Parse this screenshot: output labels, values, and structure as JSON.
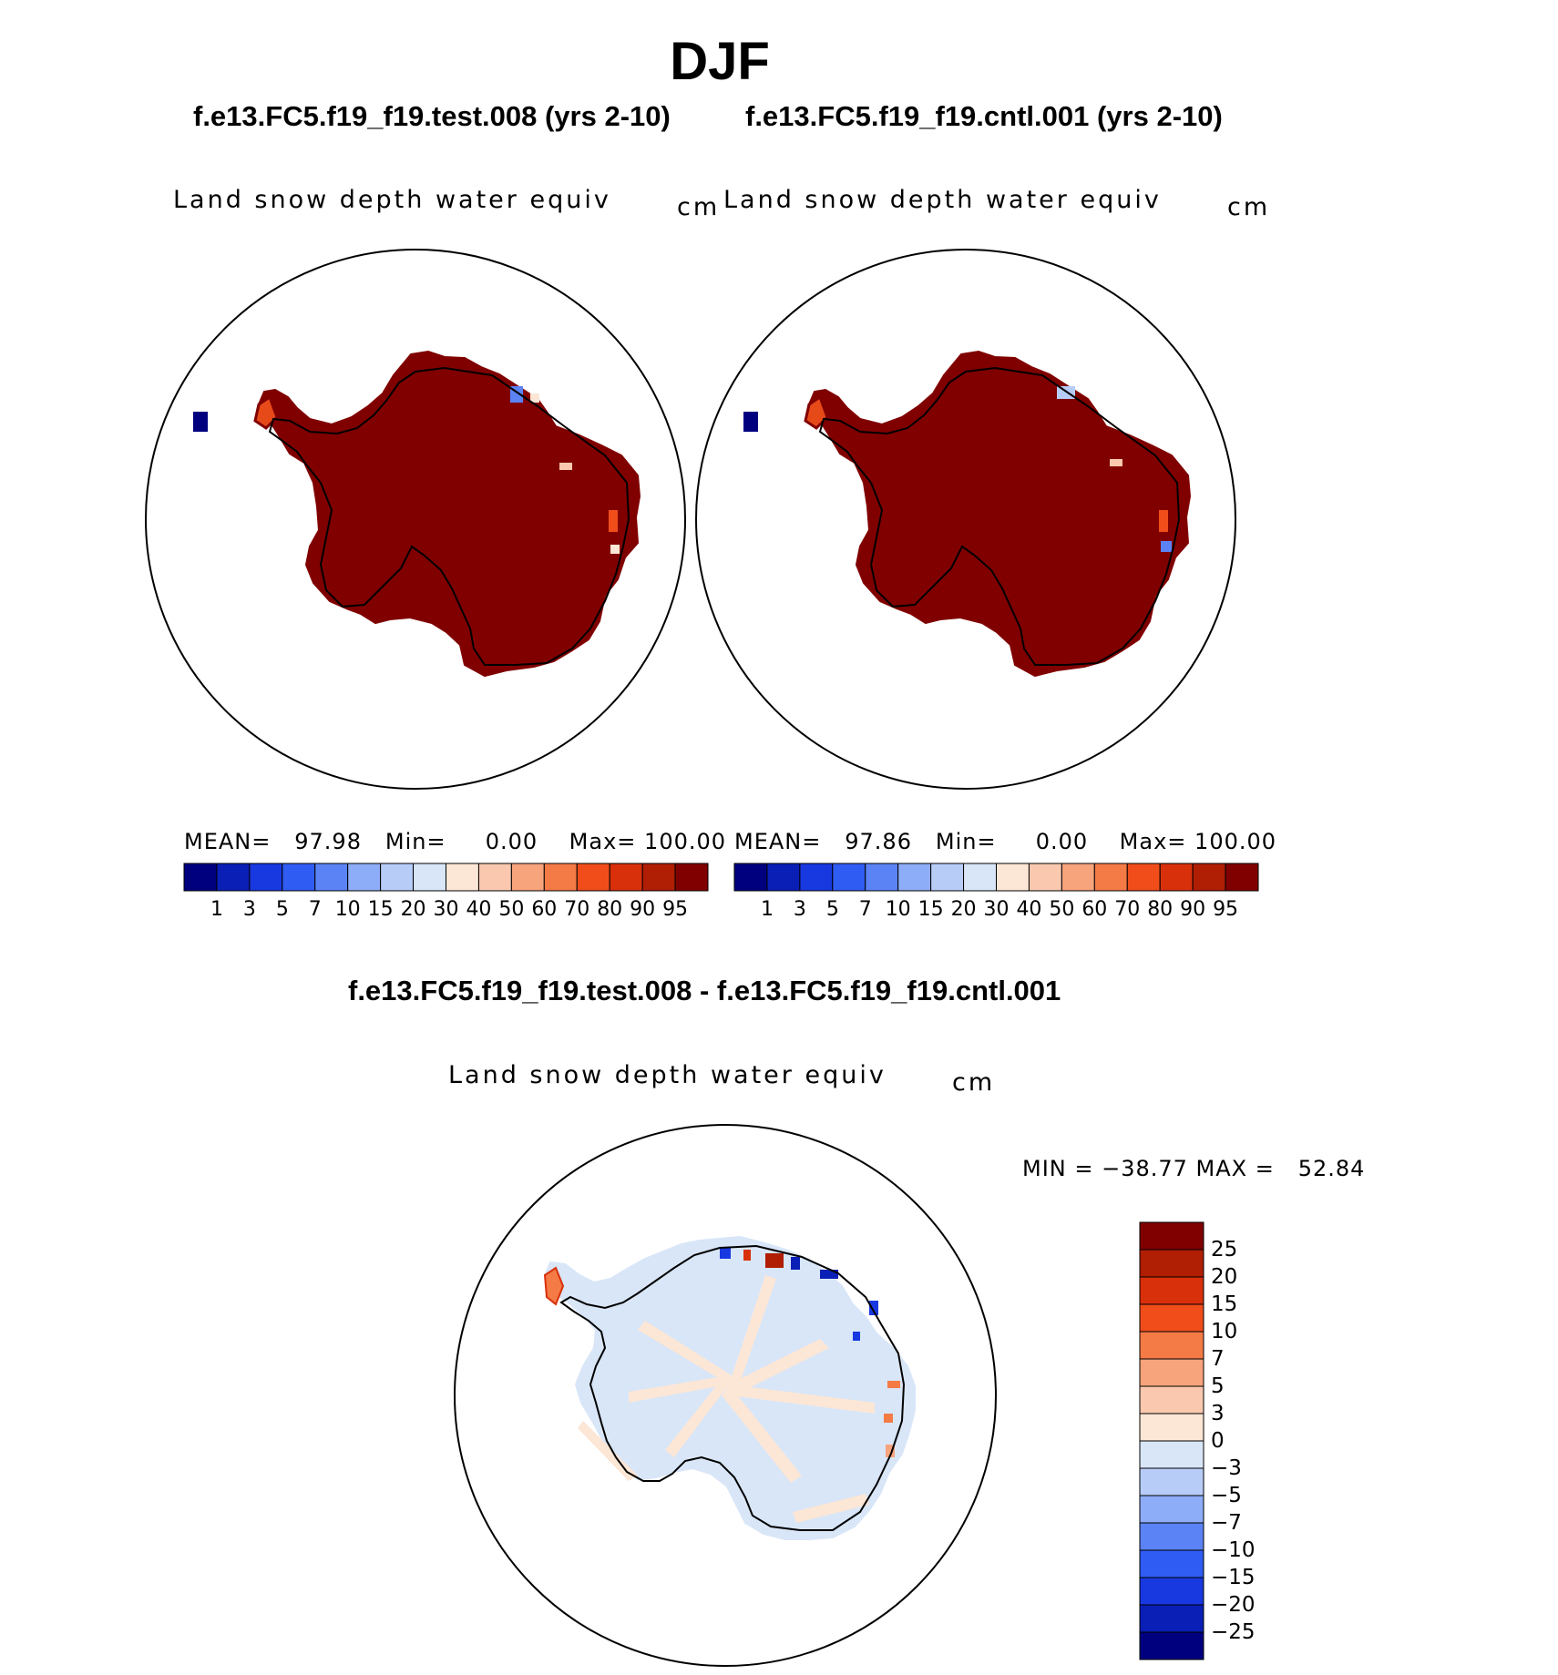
{
  "season_title": "DJF",
  "panels": [
    {
      "case_title": "f.e13.FC5.f19_f19.test.008 (yrs 2-10)",
      "variable": "Land snow depth water equiv",
      "units": "cm",
      "stats": {
        "mean_label": "MEAN=",
        "mean": "97.98",
        "min_label": "Min=",
        "min": "0.00",
        "max_label": "Max=",
        "max": "100.00"
      }
    },
    {
      "case_title": "f.e13.FC5.f19_f19.cntl.001 (yrs 2-10)",
      "variable": "Land snow depth water equiv",
      "units": "cm",
      "stats": {
        "mean_label": "MEAN=",
        "mean": "97.86",
        "min_label": "Min=",
        "min": "0.00",
        "max_label": "Max=",
        "max": "100.00"
      }
    }
  ],
  "diff_panel": {
    "title": "f.e13.FC5.f19_f19.test.008 - f.e13.FC5.f19_f19.cntl.001",
    "variable": "Land snow depth water equiv",
    "units": "cm",
    "min_max_text": "MIN = −38.77 MAX =   52.84"
  },
  "chart_data": [
    {
      "type": "heatmap",
      "region": "Antarctica (polar stereographic)",
      "colorbar": {
        "orientation": "horizontal",
        "levels": [
          "1",
          "3",
          "5",
          "7",
          "10",
          "15",
          "20",
          "30",
          "40",
          "50",
          "60",
          "70",
          "80",
          "90",
          "95"
        ],
        "colors": [
          "#00007f",
          "#0a1fb5",
          "#1838e0",
          "#2f5cf2",
          "#5b83f5",
          "#8eadf8",
          "#b8ccf8",
          "#d8e6f8",
          "#fce6d6",
          "#f9c8ae",
          "#f7a37c",
          "#f47a46",
          "#f04d1b",
          "#d9300c",
          "#b01e04",
          "#800000"
        ]
      },
      "mean": 97.98,
      "min": 0.0,
      "max": 100.0
    },
    {
      "type": "heatmap",
      "region": "Antarctica (polar stereographic)",
      "colorbar": {
        "orientation": "horizontal",
        "levels": [
          "1",
          "3",
          "5",
          "7",
          "10",
          "15",
          "20",
          "30",
          "40",
          "50",
          "60",
          "70",
          "80",
          "90",
          "95"
        ],
        "colors": [
          "#00007f",
          "#0a1fb5",
          "#1838e0",
          "#2f5cf2",
          "#5b83f5",
          "#8eadf8",
          "#b8ccf8",
          "#d8e6f8",
          "#fce6d6",
          "#f9c8ae",
          "#f7a37c",
          "#f47a46",
          "#f04d1b",
          "#d9300c",
          "#b01e04",
          "#800000"
        ]
      },
      "mean": 97.86,
      "min": 0.0,
      "max": 100.0
    },
    {
      "type": "heatmap",
      "region": "Antarctica (polar stereographic)",
      "colorbar": {
        "orientation": "vertical",
        "levels": [
          "25",
          "20",
          "15",
          "10",
          "7",
          "5",
          "3",
          "0",
          "−3",
          "−5",
          "−7",
          "−10",
          "−15",
          "−20",
          "−25"
        ],
        "colors": [
          "#800000",
          "#b01e04",
          "#d9300c",
          "#f04d1b",
          "#f47a46",
          "#f7a37c",
          "#f9c8ae",
          "#fce6d6",
          "#d8e6f8",
          "#b8ccf8",
          "#8eadf8",
          "#5b83f5",
          "#2f5cf2",
          "#1838e0",
          "#0a1fb5",
          "#00007f"
        ]
      },
      "min": -38.77,
      "max": 52.84
    }
  ]
}
